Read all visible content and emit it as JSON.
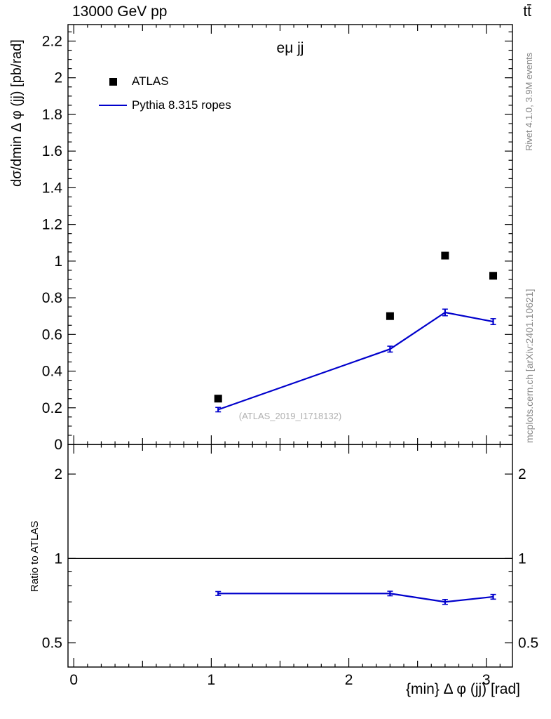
{
  "header": {
    "left": "13000 GeV pp",
    "right": "tt̄"
  },
  "watermarks": {
    "rivet": "Rivet 4.1.0,  3.9M events",
    "mcplots": "mcplots.cern.ch [arXiv:2401.10621]",
    "analysis": "(ATLAS_2019_I1718132)"
  },
  "chart_data": {
    "type": "line",
    "title": "eμ jj",
    "xlabel": "{min} Δ φ (jj) [rad]",
    "ylabel_main": "dσ/dmin Δ φ (jj) [pb/rad]",
    "ylabel_ratio": "Ratio to ATLAS",
    "xlim": [
      -0.042,
      3.19
    ],
    "ylim_main": [
      0,
      2.29
    ],
    "ylim_ratio": [
      0.41,
      2.55
    ],
    "ratio_scale": "log",
    "legend_position": "top-left",
    "grid": false,
    "x": [
      1.05,
      2.3,
      2.7,
      3.05
    ],
    "xticks": [
      0,
      1,
      2,
      3
    ],
    "main_yticks": [
      0,
      0.2,
      0.4,
      0.6,
      0.8,
      1,
      1.2,
      1.4,
      1.6,
      1.8,
      2,
      2.2
    ],
    "ratio_ticks": [
      0.5,
      1,
      2
    ],
    "ratio_minor_ticks": [
      0.6,
      0.7,
      0.8,
      0.9
    ],
    "series": [
      {
        "name": "ATLAS",
        "style": "scatter",
        "marker": "square",
        "color": "#000000",
        "values": [
          0.25,
          0.7,
          1.03,
          0.92
        ]
      },
      {
        "name": "Pythia 8.315 ropes",
        "style": "line",
        "color": "#0000cc",
        "values": [
          0.19,
          0.52,
          0.72,
          0.67
        ],
        "errors": [
          0.012,
          0.016,
          0.018,
          0.016
        ]
      }
    ],
    "ratio": {
      "name": "Pythia 8.315 ropes / ATLAS",
      "values": [
        0.75,
        0.75,
        0.7,
        0.73
      ],
      "errors": [
        0.012,
        0.014,
        0.014,
        0.014
      ]
    },
    "reference_line": 1
  }
}
